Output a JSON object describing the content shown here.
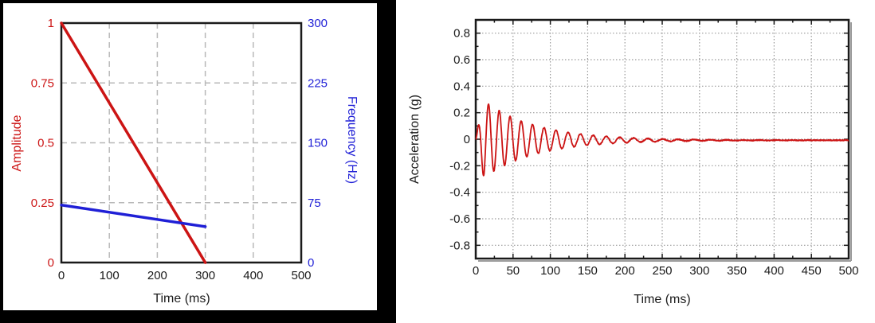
{
  "page": {
    "background": "#ffffff"
  },
  "chart_data": [
    {
      "type": "line",
      "title": "",
      "xlabel": "Time (ms)",
      "x_range": [
        0,
        500
      ],
      "x_ticks": [
        0,
        100,
        200,
        300,
        400,
        500
      ],
      "x_tick_labels": [
        "0",
        "100",
        "200",
        "300",
        "400",
        "500"
      ],
      "left_axis": {
        "label": "Amplitude",
        "color": "#cc1414",
        "range": [
          0,
          1
        ],
        "ticks": [
          0,
          0.25,
          0.5,
          0.75,
          1
        ],
        "tick_labels": [
          "0",
          "0.25",
          "0.5",
          "0.75",
          "1"
        ]
      },
      "right_axis": {
        "label": "Frequency (Hz)",
        "color": "#1f1fd6",
        "range": [
          0,
          300
        ],
        "ticks": [
          0,
          75,
          150,
          225,
          300
        ],
        "tick_labels": [
          "0",
          "75",
          "150",
          "225",
          "300"
        ]
      },
      "grid": {
        "x_values": [
          100,
          200,
          300,
          400
        ],
        "y_left_values": [
          0.25,
          0.5,
          0.75
        ],
        "style": "dashed",
        "color": "#b8b8b8"
      },
      "frame_color": "#1a1a1a",
      "series": [
        {
          "name": "Amplitude",
          "axis": "left",
          "color": "#cc1414",
          "line_width": 3.5,
          "points": [
            [
              0,
              1
            ],
            [
              300,
              0
            ]
          ]
        },
        {
          "name": "Frequency",
          "axis": "right",
          "color": "#1f1fd6",
          "line_width": 3.5,
          "points": [
            [
              0,
              72
            ],
            [
              300,
              45
            ]
          ]
        }
      ]
    },
    {
      "type": "line",
      "title": "",
      "xlabel": "Time (ms)",
      "ylabel": "Acceleration (g)",
      "x_range": [
        0,
        500
      ],
      "y_range": [
        -0.9,
        0.9
      ],
      "x_ticks": [
        0,
        50,
        100,
        150,
        200,
        250,
        300,
        350,
        400,
        450,
        500
      ],
      "x_tick_labels": [
        "0",
        "50",
        "100",
        "150",
        "200",
        "250",
        "300",
        "350",
        "400",
        "450",
        "500"
      ],
      "y_ticks": [
        -0.8,
        -0.6,
        -0.4,
        -0.2,
        0,
        0.2,
        0.4,
        0.6,
        0.8
      ],
      "y_tick_labels": [
        "-0.8",
        "-0.6",
        "-0.4",
        "-0.2",
        "0",
        "0.2",
        "0.4",
        "0.6",
        "0.8"
      ],
      "grid": {
        "x_values": [
          50,
          100,
          150,
          200,
          250,
          300,
          350,
          400,
          450
        ],
        "y_values": [
          -0.8,
          -0.6,
          -0.4,
          -0.2,
          0,
          0.2,
          0.4,
          0.6,
          0.8
        ],
        "style": "dotted",
        "color": "#9a9a9a"
      },
      "frame_color": "#1a1a1a",
      "series": [
        {
          "name": "Acceleration",
          "color": "#cc1414",
          "line_width": 1.8,
          "description": "Damped oscillatory acceleration burst decaying to ~0 g after ~250 ms",
          "synthesis": {
            "peak_g": 0.34,
            "decay_tau_ms": 70,
            "ramp_ms": 11,
            "freq_start_hz": 72,
            "freq_end_hz": 45,
            "sweep_end_ms": 300,
            "noise_g": 0.007,
            "baseline_g": -0.008,
            "t_step_ms": 0.4
          },
          "envelope_keypoints": [
            [
              0,
              0.0
            ],
            [
              5,
              0.2
            ],
            [
              10,
              0.27
            ],
            [
              14,
              0.3
            ],
            [
              20,
              0.16
            ],
            [
              26,
              0.19
            ],
            [
              33,
              0.15
            ],
            [
              40,
              0.13
            ],
            [
              47,
              0.14
            ],
            [
              60,
              0.12
            ],
            [
              75,
              0.1
            ],
            [
              100,
              0.07
            ],
            [
              150,
              0.05
            ],
            [
              200,
              0.03
            ],
            [
              250,
              0.015
            ],
            [
              300,
              0.01
            ],
            [
              400,
              0.008
            ],
            [
              500,
              0.008
            ]
          ]
        }
      ]
    }
  ]
}
